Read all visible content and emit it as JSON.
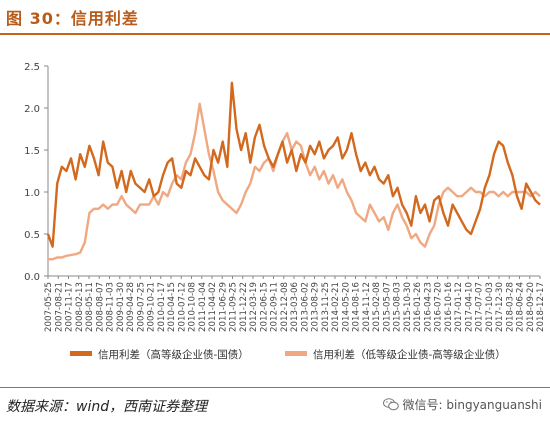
{
  "figure": {
    "title": "图 30：信用利差",
    "source": "数据来源：wind，西南证券整理",
    "watermark": "微信号: bingyanguanshi",
    "watermark_icon": "wechat-icon"
  },
  "colors": {
    "series1": "#d2691e",
    "series2": "#f0a882",
    "axis": "#888888",
    "accent": "#c8601e"
  },
  "chart_data": {
    "type": "line",
    "title": "",
    "xlabel": "",
    "ylabel": "",
    "ylim": [
      0,
      2.5
    ],
    "yticks": [
      "0.0",
      "0.5",
      "1.0",
      "1.5",
      "2.0",
      "2.5"
    ],
    "grid": false,
    "legend": "bottom",
    "xticks": [
      "2007-05-25",
      "2007-08-21",
      "2007-11-17",
      "2008-02-13",
      "2008-05-11",
      "2008-08-07",
      "2008-11-03",
      "2009-01-30",
      "2009-04-28",
      "2009-07-25",
      "2009-10-21",
      "2010-01-17",
      "2010-04-15",
      "2010-07-12",
      "2010-10-08",
      "2011-01-04",
      "2011-04-02",
      "2011-06-29",
      "2011-09-25",
      "2011-12-22",
      "2012-03-19",
      "2012-06-15",
      "2012-09-11",
      "2012-12-08",
      "2013-03-06",
      "2013-06-02",
      "2013-08-29",
      "2013-11-25",
      "2014-02-21",
      "2014-05-20",
      "2014-08-16",
      "2014-11-12",
      "2015-02-08",
      "2015-05-07",
      "2015-08-03",
      "2015-10-30",
      "2016-01-26",
      "2016-04-23",
      "2016-07-20",
      "2016-10-16",
      "2017-01-12",
      "2017-04-10",
      "2017-07-07",
      "2017-10-03",
      "2017-12-30",
      "2018-03-28",
      "2018-06-24",
      "2018-09-20",
      "2018-12-17"
    ],
    "series": [
      {
        "name": "信用利差（高等级企业债-国债）",
        "values": [
          0.5,
          0.35,
          1.1,
          1.3,
          1.25,
          1.4,
          1.15,
          1.45,
          1.3,
          1.55,
          1.4,
          1.2,
          1.6,
          1.35,
          1.3,
          1.05,
          1.25,
          1.0,
          1.25,
          1.1,
          1.05,
          1.0,
          1.15,
          0.95,
          1.0,
          1.2,
          1.35,
          1.4,
          1.1,
          1.05,
          1.25,
          1.2,
          1.4,
          1.3,
          1.2,
          1.15,
          1.5,
          1.35,
          1.6,
          1.3,
          2.3,
          1.75,
          1.5,
          1.7,
          1.35,
          1.65,
          1.8,
          1.55,
          1.4,
          1.3,
          1.45,
          1.6,
          1.35,
          1.5,
          1.25,
          1.45,
          1.35,
          1.55,
          1.45,
          1.6,
          1.4,
          1.5,
          1.55,
          1.65,
          1.4,
          1.5,
          1.7,
          1.45,
          1.25,
          1.35,
          1.2,
          1.3,
          1.15,
          1.1,
          1.2,
          0.95,
          1.05,
          0.85,
          0.75,
          0.6,
          0.95,
          0.75,
          0.85,
          0.65,
          0.9,
          0.95,
          0.75,
          0.6,
          0.85,
          0.75,
          0.65,
          0.55,
          0.5,
          0.65,
          0.8,
          1.05,
          1.2,
          1.45,
          1.6,
          1.55,
          1.35,
          1.2,
          0.95,
          0.8,
          1.1,
          1.0,
          0.9,
          0.85
        ]
      },
      {
        "name": "信用利差（低等级企业债-高等级企业债）",
        "values": [
          0.2,
          0.2,
          0.22,
          0.22,
          0.24,
          0.25,
          0.26,
          0.28,
          0.4,
          0.75,
          0.8,
          0.8,
          0.85,
          0.8,
          0.85,
          0.85,
          0.95,
          0.85,
          0.8,
          0.75,
          0.85,
          0.85,
          0.85,
          0.95,
          0.85,
          1.0,
          0.95,
          1.1,
          1.2,
          1.15,
          1.35,
          1.45,
          1.7,
          2.05,
          1.75,
          1.45,
          1.25,
          1.0,
          0.9,
          0.85,
          0.8,
          0.75,
          0.85,
          1.0,
          1.1,
          1.3,
          1.25,
          1.35,
          1.4,
          1.25,
          1.45,
          1.6,
          1.7,
          1.5,
          1.6,
          1.55,
          1.35,
          1.2,
          1.3,
          1.15,
          1.25,
          1.1,
          1.2,
          1.05,
          1.15,
          1.0,
          0.9,
          0.75,
          0.7,
          0.65,
          0.85,
          0.75,
          0.65,
          0.7,
          0.55,
          0.75,
          0.85,
          0.7,
          0.6,
          0.45,
          0.5,
          0.4,
          0.35,
          0.5,
          0.6,
          0.85,
          1.0,
          1.05,
          1.0,
          0.95,
          0.95,
          1.0,
          1.05,
          1.0,
          1.0,
          0.95,
          1.0,
          1.0,
          0.95,
          1.0,
          0.95,
          1.0,
          1.0,
          1.0,
          1.0,
          0.95,
          1.0,
          0.95
        ]
      }
    ]
  }
}
